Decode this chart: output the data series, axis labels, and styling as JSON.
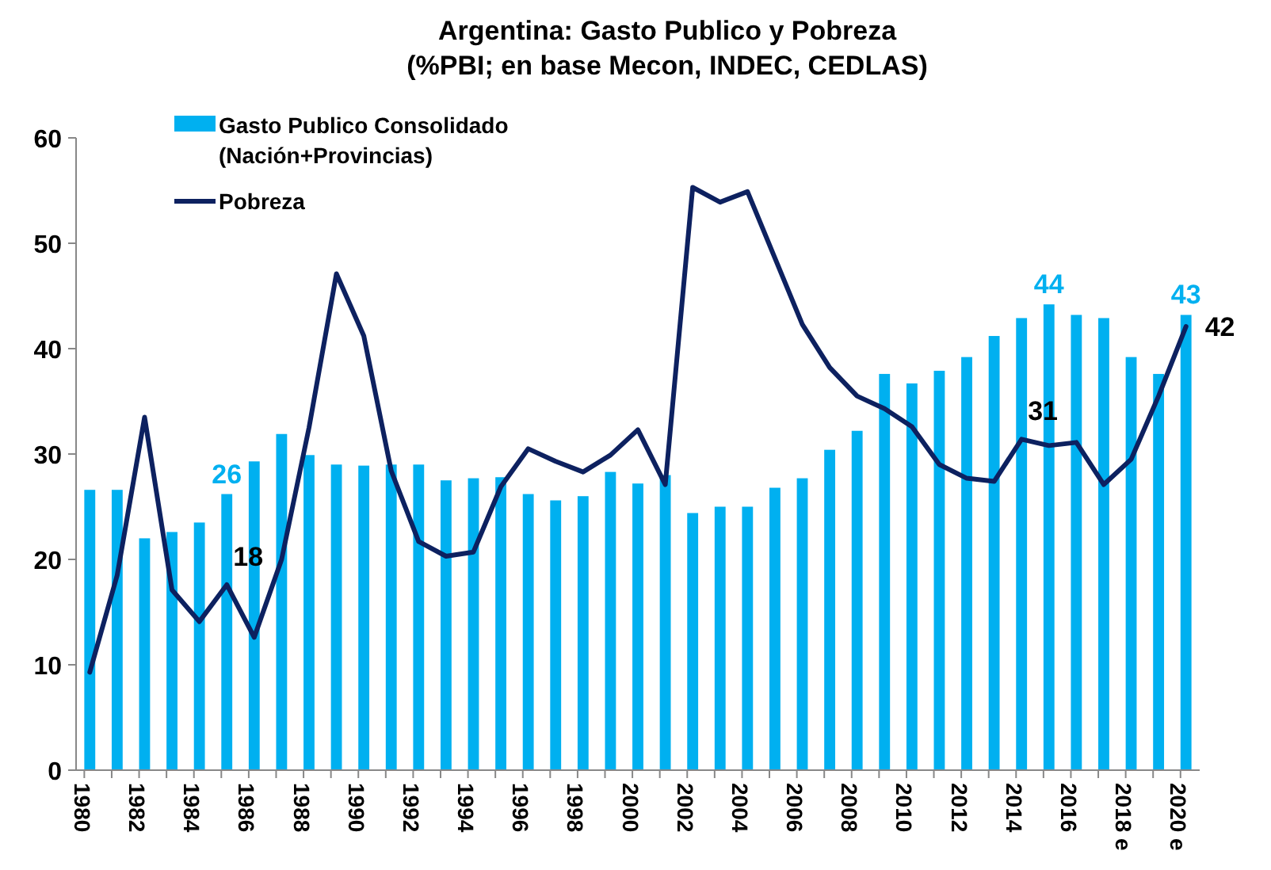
{
  "chart_data": {
    "type": "bar",
    "title": "Argentina: Gasto Publico y Pobreza",
    "subtitle": "(%PBI; en base Mecon, INDEC, CEDLAS)",
    "categories": [
      "1980",
      null,
      "1982",
      null,
      "1984",
      null,
      "1986",
      null,
      "1988",
      null,
      "1990",
      null,
      "1992",
      null,
      "1994",
      null,
      "1996",
      null,
      "1998",
      null,
      "2000",
      null,
      "2002",
      null,
      "2004",
      null,
      "2006",
      null,
      "2008",
      null,
      "2010",
      null,
      "2012",
      null,
      "2014",
      null,
      "2016",
      null,
      "2018 e",
      null,
      "2020 e"
    ],
    "series": [
      {
        "name": "Gasto Publico Consolidado (Nación+Provincias)",
        "color": "#00b0f0",
        "values": [
          26.6,
          26.6,
          22,
          22.6,
          23.5,
          26.2,
          29.3,
          31.9,
          29.9,
          29,
          28.9,
          29,
          29,
          27.5,
          27.7,
          27.8,
          26.2,
          25.6,
          26,
          28.3,
          27.2,
          28,
          24.4,
          25,
          25,
          26.8,
          27.7,
          30.4,
          32.2,
          37.6,
          36.7,
          37.9,
          39.2,
          41.2,
          42.9,
          44.2,
          43.2,
          42.9,
          39.2,
          37.6,
          43.2
        ],
        "value_labels": [
          null,
          null,
          null,
          null,
          null,
          "26",
          null,
          null,
          null,
          null,
          null,
          null,
          null,
          null,
          null,
          null,
          null,
          null,
          null,
          null,
          null,
          null,
          null,
          null,
          null,
          null,
          null,
          null,
          null,
          null,
          null,
          null,
          null,
          null,
          null,
          "44",
          null,
          null,
          null,
          null,
          "43"
        ]
      },
      {
        "name": "Pobreza",
        "type": "line",
        "color": "#0d2160",
        "values": [
          9.3,
          18.5,
          33.5,
          17.1,
          14.1,
          17.6,
          12.6,
          20,
          32.5,
          47.1,
          41.2,
          28.4,
          21.7,
          20.3,
          20.7,
          26.9,
          30.5,
          29.3,
          28.3,
          29.9,
          32.3,
          27.1,
          55.3,
          53.9,
          54.9,
          48.6,
          42.3,
          38.2,
          35.5,
          34.3,
          32.6,
          29,
          27.7,
          27.4,
          31.4,
          30.8,
          31.1,
          27.1,
          29.5,
          35.5,
          42.1
        ],
        "value_labels": [
          null,
          null,
          null,
          null,
          null,
          "18",
          null,
          null,
          null,
          null,
          null,
          null,
          null,
          null,
          null,
          null,
          null,
          null,
          null,
          null,
          null,
          null,
          null,
          null,
          null,
          null,
          null,
          null,
          null,
          null,
          null,
          null,
          null,
          null,
          "31",
          null,
          null,
          null,
          null,
          null,
          "42"
        ]
      }
    ],
    "ylim": [
      0,
      60
    ],
    "yticks": [
      0,
      10,
      20,
      30,
      40,
      50,
      60
    ],
    "grid": false,
    "legend": "top left",
    "marker": "none",
    "line_style": "solid"
  }
}
